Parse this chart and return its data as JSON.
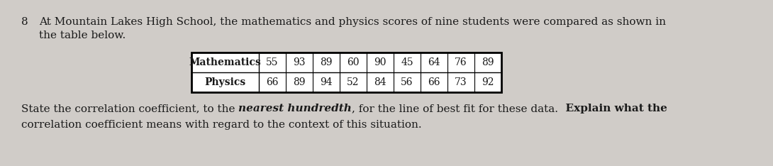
{
  "question_number": "8",
  "intro_line1": "At Mountain Lakes High School, the mathematics and physics scores of nine students were compared as shown in",
  "intro_line2": "the table below.",
  "math_label": "Mathematics",
  "physics_label": "Physics",
  "math_scores": [
    55,
    93,
    89,
    60,
    90,
    45,
    64,
    76,
    89
  ],
  "physics_scores": [
    66,
    89,
    94,
    52,
    84,
    56,
    66,
    73,
    92
  ],
  "bottom_t1": "State the correlation coefficient, to the ",
  "bottom_t2": "nearest hundredth",
  "bottom_t3": ", for the line of best fit for these data.",
  "bottom_t4": "  Explain what the",
  "bottom_line2": "correlation coefficient means with regard to the context of this situation.",
  "bg_color": "#d0ccc8",
  "text_color": "#1a1a1a",
  "fontsize": 11,
  "table_fontsize": 10
}
